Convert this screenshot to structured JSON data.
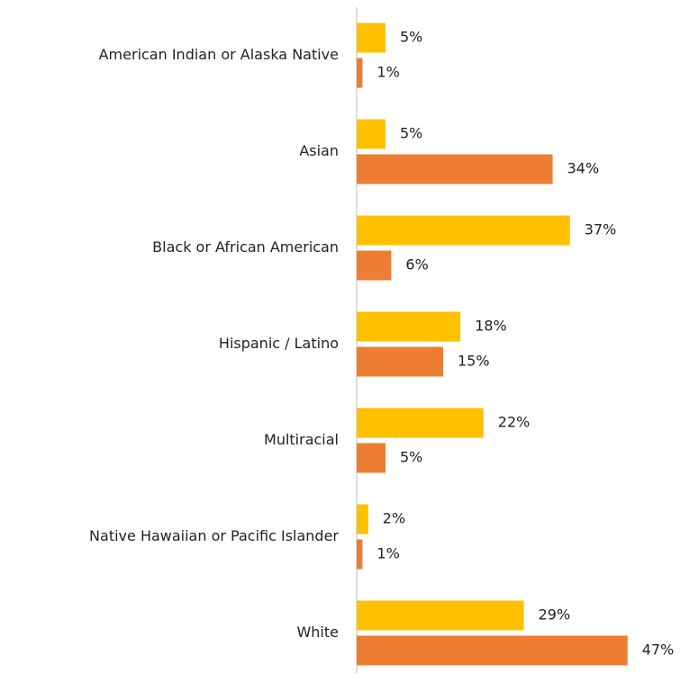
{
  "chart_data": {
    "type": "bar",
    "orientation": "horizontal",
    "categories": [
      "American Indian or Alaska Native",
      "Asian",
      "Black or African American",
      "Hispanic / Latino",
      "Multiracial",
      "Native Hawaiian or Pacific Islander",
      "White"
    ],
    "series": [
      {
        "color": "#FFC000",
        "values": [
          5,
          5,
          37,
          18,
          22,
          2,
          29
        ],
        "value_labels": [
          "5%",
          "5%",
          "37%",
          "18%",
          "22%",
          "2%",
          "29%"
        ]
      },
      {
        "color": "#ED7D31",
        "values": [
          1,
          34,
          6,
          15,
          5,
          1,
          47
        ],
        "value_labels": [
          "1%",
          "34%",
          "6%",
          "15%",
          "5%",
          "1%",
          "47%"
        ]
      }
    ],
    "xlim": [
      0,
      50
    ]
  }
}
